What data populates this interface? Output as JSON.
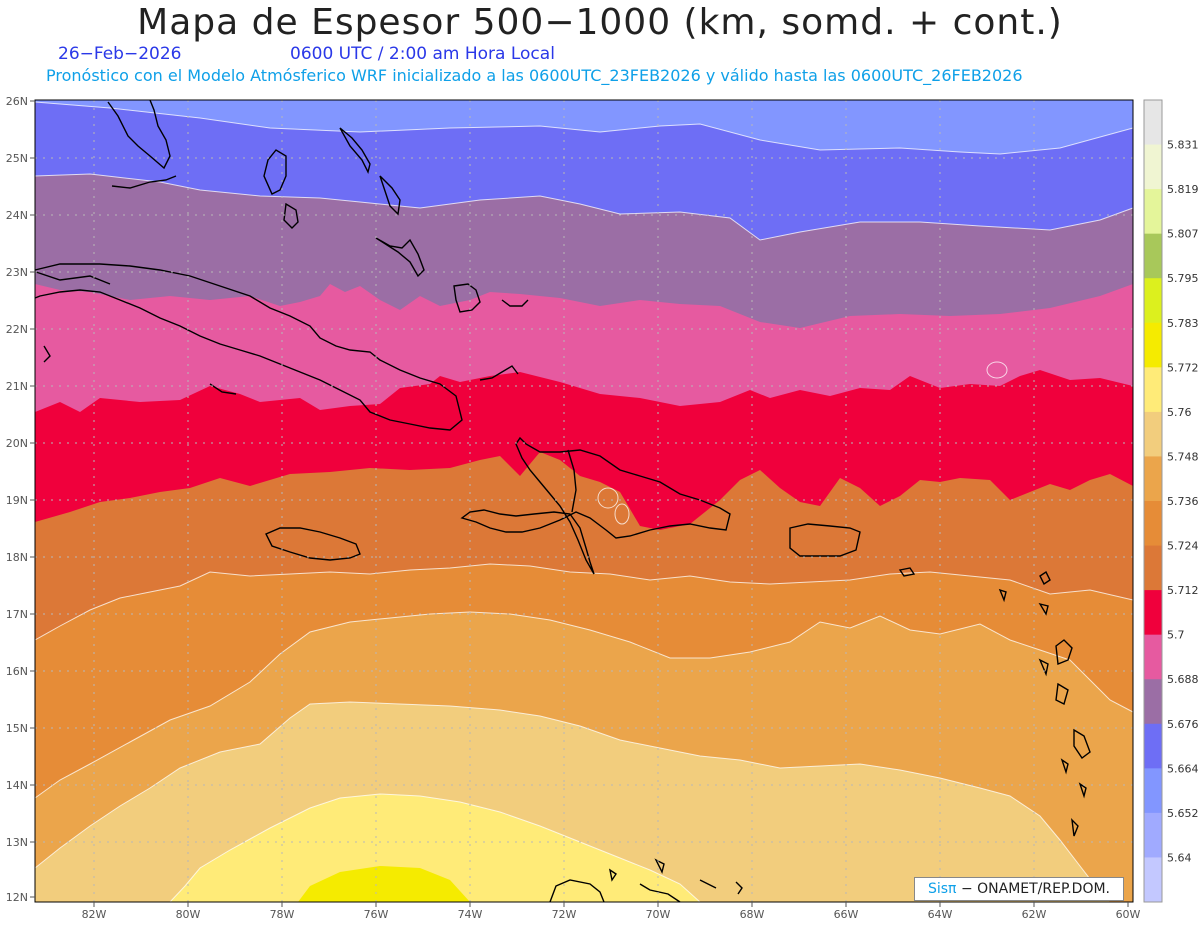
{
  "header": {
    "title": "Mapa de Espesor 500−1000 (km, somd. + cont.)",
    "date": "26−Feb−2026",
    "time": "0600 UTC / 2:00 am Hora Local",
    "subtitle": "Pronóstico con el Modelo Atmósferico WRF inicializado a las 0600UTC_23FEB2026 y válido hasta las  0600UTC_26FEB2026"
  },
  "axes": {
    "lat_labels": [
      "26N",
      "25N",
      "24N",
      "23N",
      "22N",
      "21N",
      "20N",
      "19N",
      "18N",
      "17N",
      "16N",
      "15N",
      "14N",
      "13N",
      "12N"
    ],
    "lon_labels": [
      "82W",
      "80W",
      "78W",
      "76W",
      "74W",
      "72W",
      "70W",
      "68W",
      "66W",
      "64W",
      "62W",
      "60W"
    ]
  },
  "legend": {
    "levels": [
      "5.831",
      "5.819",
      "5.807",
      "5.795",
      "5.783",
      "5.772",
      "5.76",
      "5.748",
      "5.736",
      "5.724",
      "5.712",
      "5.7",
      "5.688",
      "5.676",
      "5.664",
      "5.652",
      "5.64"
    ],
    "colors": [
      "#e6e6e6",
      "#f0f5d2",
      "#e4f59a",
      "#a8c85a",
      "#dcf01e",
      "#f5eb00",
      "#ffeb78",
      "#f2cd7d",
      "#eba54b",
      "#e68c37",
      "#dc7837",
      "#f0003c",
      "#e65aa0",
      "#9b6ea5",
      "#6e6ef5",
      "#8296ff",
      "#a0aaff",
      "#c3c8ff"
    ]
  },
  "credit": {
    "brand": "Sisπ",
    "text": "− ONAMET/REP.DOM."
  }
}
